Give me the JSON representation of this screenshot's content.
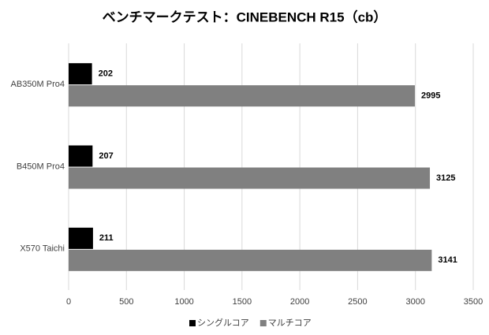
{
  "chart_data": {
    "type": "bar",
    "orientation": "horizontal",
    "title": "ベンチマークテスト：CINEBENCH R15（cb）",
    "categories": [
      "AB350M Pro4",
      "B450M Pro4",
      "X570 Taichi"
    ],
    "series": [
      {
        "name": "シングルコア",
        "color": "#000000",
        "values": [
          202,
          207,
          211
        ]
      },
      {
        "name": "マルチコア",
        "color": "#808080",
        "values": [
          2995,
          3125,
          3141
        ]
      }
    ],
    "xlim": [
      0,
      3500
    ],
    "xticks": [
      0,
      500,
      1000,
      1500,
      2000,
      2500,
      3000,
      3500
    ],
    "grid": true,
    "legend": "bottom"
  }
}
